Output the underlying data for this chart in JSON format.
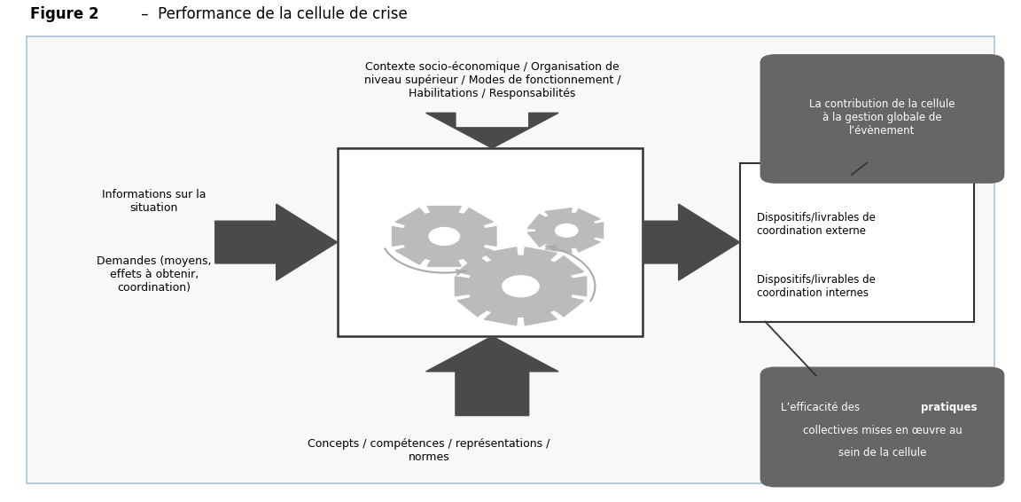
{
  "bg_color": "#ffffff",
  "border_color": "#aac4d4",
  "arrow_dark": "#4a4a4a",
  "gear_color": "#bbbbbb",
  "callout_color": "#666666",
  "title_bold": "Figure 2",
  "title_rest": " –  Performance de la cellule de crise",
  "top_text": "Contexte socio-économique / Organisation de\nniveau supérieur / Modes de fonctionnement /\nHabilitations / Responsabilités",
  "bottom_text": "Concepts / compétences / représentations /\nnormes",
  "left_text1": "Informations sur la\nsituation",
  "left_text2": "Demandes (moyens,\neffets à obtenir,\ncoordination)",
  "right_text1": "Dispositifs/livrables de\ncoordination externe",
  "right_text2": "Dispositifs/livrables de\ncoordination internes",
  "callout1_text": "La contribution de la cellule\nà la gestion globale de\nl’évènement",
  "callout2_pre": "L’efficacité des ",
  "callout2_bold": "pratiques",
  "callout2_post": "\ncollectives mises en œuvre au\nsein de la cellule"
}
